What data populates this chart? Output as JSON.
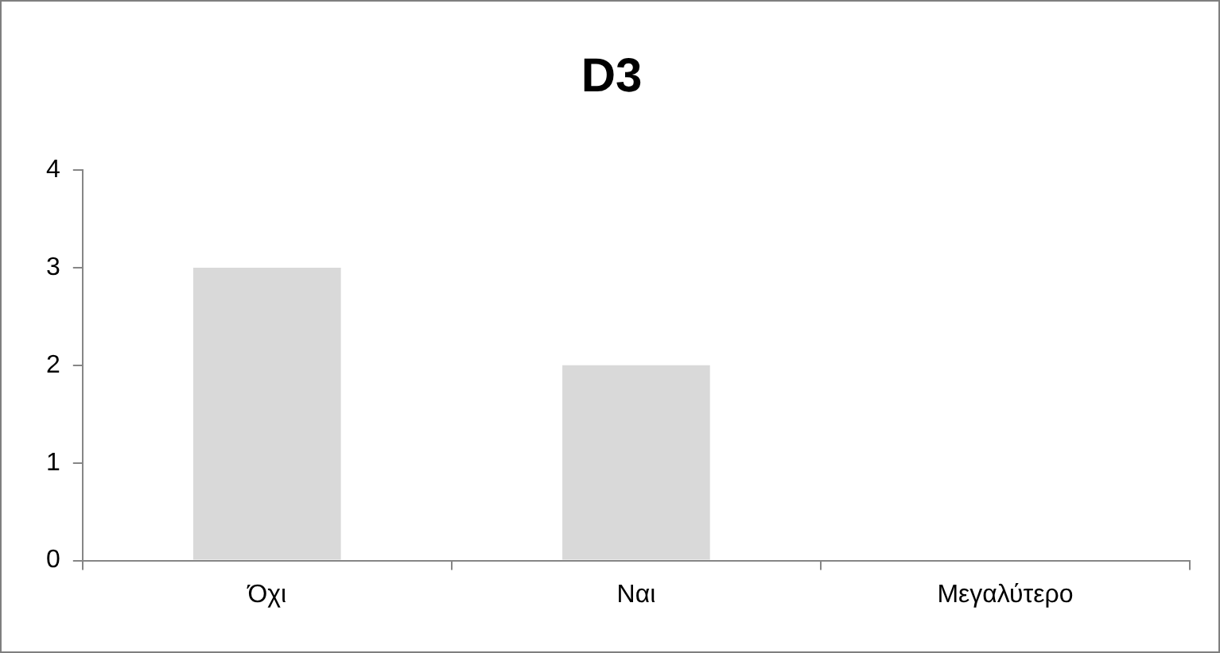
{
  "chart_data": {
    "type": "bar",
    "title": "D3",
    "categories": [
      "Όχι",
      "Ναι",
      "Μεγαλύτερο"
    ],
    "values": [
      3,
      2,
      0
    ],
    "color": "#d9d9d9",
    "ylim": [
      0,
      4
    ],
    "yticks": [
      0,
      1,
      2,
      3,
      4
    ],
    "grid": false,
    "legend": false
  }
}
